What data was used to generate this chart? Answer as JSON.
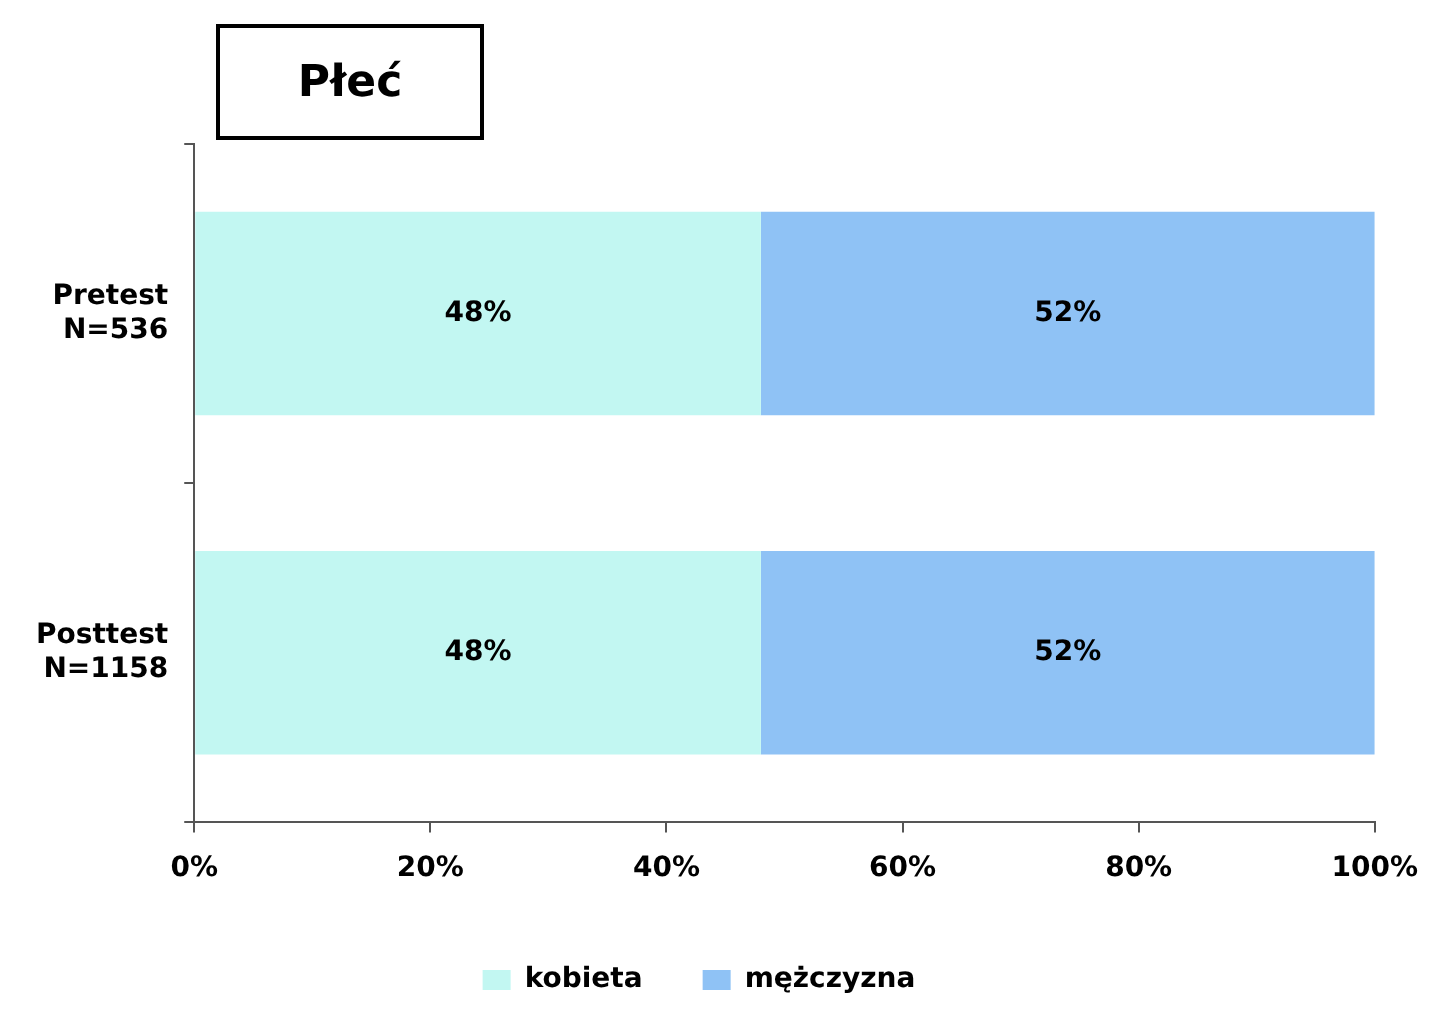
{
  "chart_data": {
    "type": "bar",
    "title": "Płeć",
    "orientation": "horizontal",
    "stacked": true,
    "categories": [
      "Pretest\nN=536",
      "Posttest\nN=1158"
    ],
    "series": [
      {
        "name": "kobieta",
        "color": "#c2f7f2",
        "values": [
          48,
          48
        ],
        "value_labels": [
          "48%",
          "48%"
        ]
      },
      {
        "name": "mężczyzna",
        "color": "#8fc2f5",
        "values": [
          52,
          52
        ],
        "value_labels": [
          "52%",
          "52%"
        ]
      }
    ],
    "xlim": [
      0,
      100
    ],
    "xticks": [
      {
        "value": 0,
        "label": "0%"
      },
      {
        "value": 20,
        "label": "20%"
      },
      {
        "value": 40,
        "label": "40%"
      },
      {
        "value": 60,
        "label": "60%"
      },
      {
        "value": 80,
        "label": "80%"
      },
      {
        "value": 100,
        "label": "100%"
      }
    ],
    "legend": "bottom"
  }
}
